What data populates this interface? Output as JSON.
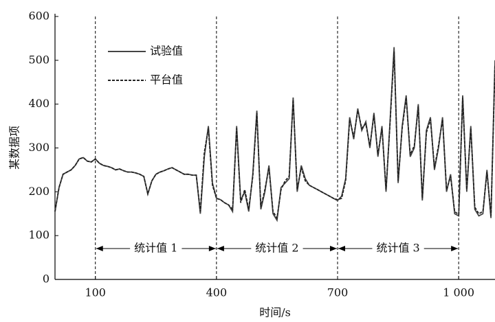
{
  "chart_data": {
    "type": "line",
    "x_label": "时间/s",
    "y_label": "某数据项",
    "xlim": [
      0,
      1090
    ],
    "ylim": [
      0,
      600
    ],
    "xticks": [
      100,
      400,
      700,
      {
        "value": 1000,
        "label": "1 000"
      }
    ],
    "yticks": [
      0,
      100,
      200,
      300,
      400,
      500,
      600
    ],
    "ref_lines": [
      100,
      400,
      700,
      1000
    ],
    "annotations": [
      "统计值 1",
      "统计值 2",
      "统计值 3"
    ],
    "x": [
      0,
      10,
      20,
      30,
      40,
      50,
      60,
      70,
      80,
      90,
      100,
      110,
      120,
      130,
      140,
      150,
      160,
      170,
      180,
      190,
      200,
      210,
      220,
      230,
      240,
      250,
      260,
      270,
      280,
      290,
      300,
      310,
      320,
      330,
      340,
      350,
      360,
      370,
      380,
      390,
      400,
      410,
      420,
      430,
      440,
      450,
      460,
      470,
      480,
      490,
      500,
      510,
      520,
      530,
      540,
      550,
      560,
      570,
      580,
      590,
      600,
      610,
      620,
      630,
      640,
      650,
      660,
      670,
      680,
      690,
      700,
      710,
      720,
      730,
      740,
      750,
      760,
      770,
      780,
      790,
      800,
      810,
      820,
      830,
      840,
      850,
      860,
      870,
      880,
      890,
      900,
      910,
      920,
      930,
      940,
      950,
      960,
      970,
      980,
      990,
      1000,
      1010,
      1020,
      1030,
      1040,
      1050,
      1060,
      1070,
      1080,
      1090
    ],
    "series": [
      {
        "name": "试验值",
        "color": "#444444",
        "linestyle": "solid",
        "values": [
          155,
          210,
          240,
          245,
          250,
          260,
          275,
          278,
          270,
          268,
          275,
          265,
          260,
          258,
          255,
          250,
          252,
          248,
          245,
          245,
          243,
          240,
          235,
          195,
          225,
          240,
          245,
          248,
          252,
          255,
          250,
          245,
          240,
          240,
          238,
          238,
          150,
          280,
          350,
          220,
          185,
          182,
          175,
          170,
          155,
          350,
          180,
          200,
          155,
          240,
          385,
          160,
          200,
          260,
          150,
          135,
          210,
          220,
          230,
          415,
          200,
          260,
          230,
          215,
          210,
          205,
          200,
          195,
          190,
          185,
          180,
          190,
          230,
          370,
          320,
          390,
          340,
          360,
          300,
          380,
          280,
          350,
          200,
          360,
          530,
          220,
          350,
          420,
          280,
          300,
          400,
          180,
          340,
          370,
          250,
          300,
          370,
          200,
          240,
          150,
          145,
          420,
          200,
          350,
          160,
          145,
          150,
          250,
          140,
          500
        ]
      },
      {
        "name": "平台值",
        "color": "#222222",
        "linestyle": "dashed",
        "values": [
          155,
          210,
          240,
          245,
          250,
          260,
          275,
          278,
          270,
          268,
          275,
          265,
          260,
          258,
          255,
          250,
          252,
          248,
          245,
          245,
          243,
          240,
          235,
          195,
          225,
          240,
          245,
          248,
          252,
          255,
          250,
          245,
          240,
          240,
          238,
          238,
          155,
          290,
          345,
          215,
          185,
          182,
          175,
          170,
          160,
          345,
          175,
          205,
          160,
          235,
          380,
          165,
          205,
          255,
          155,
          140,
          205,
          225,
          235,
          410,
          205,
          255,
          225,
          215,
          210,
          205,
          200,
          195,
          190,
          185,
          182,
          185,
          225,
          365,
          325,
          385,
          345,
          355,
          305,
          375,
          285,
          345,
          205,
          355,
          520,
          225,
          345,
          415,
          285,
          305,
          395,
          185,
          335,
          365,
          255,
          305,
          365,
          205,
          235,
          155,
          148,
          415,
          205,
          345,
          165,
          150,
          155,
          245,
          145,
          490
        ]
      }
    ],
    "legend": "upper-left"
  }
}
